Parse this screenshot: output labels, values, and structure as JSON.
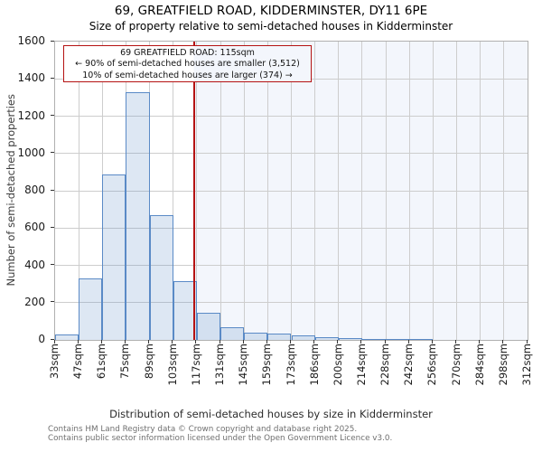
{
  "page": {
    "title": "69, GREATFIELD ROAD, KIDDERMINSTER, DY11 6PE",
    "subtitle": "Size of property relative to semi-detached houses in Kidderminster"
  },
  "chart_data": {
    "type": "bar",
    "title": "69, GREATFIELD ROAD, KIDDERMINSTER, DY11 6PE",
    "subtitle": "Size of property relative to semi-detached houses in Kidderminster",
    "xlabel": "Distribution of semi-detached houses by size in Kidderminster",
    "ylabel": "Number of semi-detached properties",
    "ylim": [
      0,
      1600
    ],
    "yticks": [
      0,
      200,
      400,
      600,
      800,
      1000,
      1200,
      1400,
      1600
    ],
    "grid": true,
    "legend": null,
    "bin_edges_sqm": [
      33,
      47,
      61,
      75,
      89,
      103,
      117,
      131,
      145,
      159,
      173,
      186,
      200,
      214,
      228,
      242,
      256,
      270,
      284,
      298,
      312
    ],
    "bin_labels": [
      "33sqm",
      "47sqm",
      "61sqm",
      "75sqm",
      "89sqm",
      "103sqm",
      "117sqm",
      "131sqm",
      "145sqm",
      "159sqm",
      "173sqm",
      "186sqm",
      "200sqm",
      "214sqm",
      "228sqm",
      "242sqm",
      "256sqm",
      "270sqm",
      "284sqm",
      "298sqm",
      "312sqm"
    ],
    "values": [
      30,
      330,
      885,
      1330,
      670,
      315,
      145,
      70,
      40,
      32,
      22,
      13,
      10,
      7,
      5,
      5,
      0,
      0,
      0,
      0
    ],
    "marker": {
      "value_sqm": 115,
      "axis_min_sqm": 33,
      "axis_max_sqm": 312
    },
    "annotation": {
      "line1": "69 GREATFIELD ROAD: 115sqm",
      "line2": "← 90% of semi-detached houses are smaller (3,512)",
      "line3": "10% of semi-detached houses are larger (374) →"
    },
    "colors": {
      "bar_fill": "#dde7f3",
      "bar_border": "#5a8ac6",
      "marker_line": "#b51212",
      "annotation_border": "#b51212",
      "shade_right_of_marker": "#f3f6fc",
      "gridline": "#cdcdcd"
    }
  },
  "footer": {
    "line1": "Contains HM Land Registry data © Crown copyright and database right 2025.",
    "line2": "Contains public sector information licensed under the Open Government Licence v3.0."
  }
}
